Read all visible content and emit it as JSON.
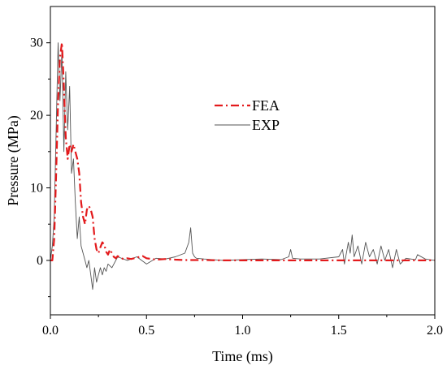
{
  "chart_data": {
    "type": "line",
    "title": "",
    "xlabel": "Time (ms)",
    "ylabel": "Pressure (MPa)",
    "xlim": [
      0,
      2.0
    ],
    "ylim": [
      -7.5,
      35
    ],
    "x_ticks": [
      0.0,
      0.5,
      1.0,
      1.5,
      2.0
    ],
    "x_tick_labels": [
      "0.0",
      "0.5",
      "1.0",
      "1.5",
      "2.0"
    ],
    "y_ticks": [
      0,
      10,
      20,
      30
    ],
    "y_tick_labels": [
      "0",
      "10",
      "20",
      "30"
    ],
    "grid": false,
    "legend_position": "center",
    "series": [
      {
        "name": "FEA",
        "color": "#e31a1c",
        "style": "dash-dot",
        "x": [
          0,
          0.01,
          0.02,
          0.03,
          0.04,
          0.05,
          0.06,
          0.07,
          0.08,
          0.09,
          0.1,
          0.11,
          0.12,
          0.13,
          0.14,
          0.15,
          0.16,
          0.17,
          0.18,
          0.19,
          0.2,
          0.21,
          0.22,
          0.23,
          0.24,
          0.25,
          0.26,
          0.27,
          0.28,
          0.29,
          0.3,
          0.31,
          0.32,
          0.33,
          0.34,
          0.35,
          0.36,
          0.38,
          0.4,
          0.42,
          0.45,
          0.48,
          0.5,
          0.55,
          0.6,
          0.65,
          0.7,
          0.8,
          0.9,
          1.0,
          1.2,
          1.4,
          1.6,
          1.8,
          2.0
        ],
        "y": [
          0,
          0,
          3,
          12,
          22,
          28,
          30,
          24,
          17,
          14,
          16,
          15,
          16,
          15,
          14,
          12,
          8,
          6,
          5,
          7,
          7.5,
          7,
          6,
          3,
          1.5,
          1,
          1.8,
          2.5,
          2.2,
          1.2,
          0.8,
          1.5,
          1,
          0.5,
          0.3,
          0.6,
          0.4,
          0.2,
          0.3,
          0.2,
          0.4,
          0.6,
          0.3,
          0.1,
          0.2,
          0.1,
          0.05,
          0.05,
          0,
          0,
          0,
          0,
          0,
          0,
          0
        ]
      },
      {
        "name": "EXP",
        "color": "#555555",
        "style": "solid",
        "x": [
          0,
          0.01,
          0.02,
          0.03,
          0.04,
          0.05,
          0.06,
          0.07,
          0.08,
          0.09,
          0.1,
          0.11,
          0.12,
          0.13,
          0.14,
          0.15,
          0.16,
          0.17,
          0.18,
          0.19,
          0.2,
          0.21,
          0.22,
          0.23,
          0.24,
          0.25,
          0.26,
          0.27,
          0.28,
          0.29,
          0.3,
          0.32,
          0.35,
          0.4,
          0.45,
          0.5,
          0.55,
          0.6,
          0.65,
          0.7,
          0.72,
          0.73,
          0.74,
          0.75,
          0.76,
          0.8,
          0.9,
          1.0,
          1.1,
          1.2,
          1.24,
          1.25,
          1.26,
          1.3,
          1.4,
          1.5,
          1.52,
          1.53,
          1.55,
          1.56,
          1.57,
          1.58,
          1.6,
          1.62,
          1.64,
          1.66,
          1.68,
          1.7,
          1.72,
          1.74,
          1.76,
          1.78,
          1.8,
          1.82,
          1.85,
          1.9,
          1.91,
          1.95,
          2.0
        ],
        "y": [
          0,
          2,
          6,
          18,
          30,
          22,
          29,
          15,
          26,
          18,
          24,
          12,
          14,
          8,
          3,
          6,
          2,
          1,
          0,
          -1,
          0,
          -2,
          -4,
          -1,
          -3,
          -2,
          -1,
          -2,
          -1,
          -1.5,
          -0.5,
          -1,
          0.5,
          0,
          0.5,
          -0.5,
          0.3,
          0.2,
          0.5,
          1,
          2.5,
          4.5,
          1,
          0.5,
          0.3,
          0.2,
          0,
          0.1,
          0.2,
          0.1,
          0.5,
          1.5,
          0.3,
          0.2,
          0.2,
          0.5,
          1.5,
          -0.5,
          2.5,
          1,
          3.5,
          0.5,
          2,
          -0.5,
          2.5,
          0.5,
          1.5,
          -0.5,
          2,
          0,
          1.5,
          -1,
          1.5,
          -0.5,
          0.3,
          0.1,
          0.8,
          0.2,
          0
        ]
      }
    ]
  }
}
